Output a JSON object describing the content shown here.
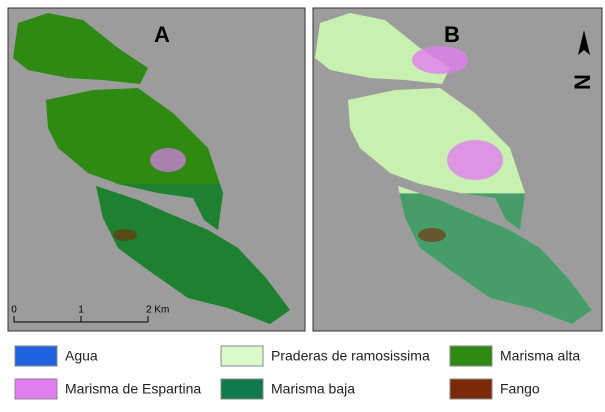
{
  "panels": [
    {
      "label": "A"
    },
    {
      "label": "B"
    }
  ],
  "scale_bar": {
    "ticks": [
      "0",
      "1",
      "2 Km"
    ]
  },
  "north_arrow": {
    "label": "N"
  },
  "legend": [
    {
      "label": "Agua",
      "color": "#1f63e0"
    },
    {
      "label": "Praderas de ramosissima",
      "color": "#d9fbc9"
    },
    {
      "label": "Marisma alta",
      "color": "#2e8a12"
    },
    {
      "label": "Marisma de Espartina",
      "color": "#e07ef0"
    },
    {
      "label": "Marisma baja",
      "color": "#107a4c"
    },
    {
      "label": "Fango",
      "color": "#7a2a08"
    }
  ]
}
